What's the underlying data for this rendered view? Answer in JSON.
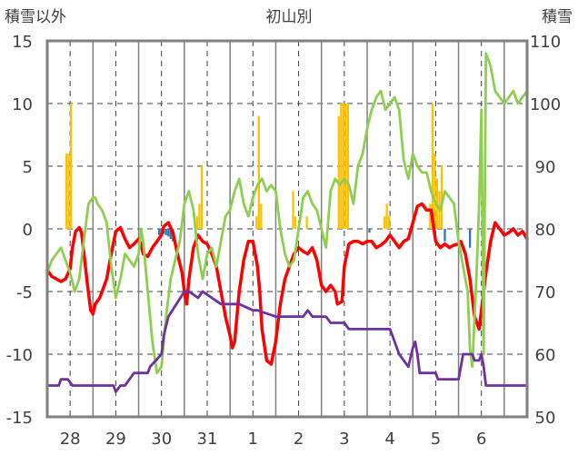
{
  "chart_data": {
    "type": "combo-line-bar",
    "title": "初山別",
    "left_axis_label": "積雪以外",
    "right_axis_label": "積雪",
    "left_ylim": [
      -15,
      15
    ],
    "left_ticks": [
      15,
      10,
      5,
      0,
      -5,
      -10,
      -15
    ],
    "right_ylim": [
      50,
      110
    ],
    "right_ticks": [
      110,
      100,
      90,
      80,
      70,
      60,
      50
    ],
    "x_range": [
      0,
      10.5
    ],
    "x_ticks": [
      {
        "x": 0.5,
        "label": "28"
      },
      {
        "x": 1.5,
        "label": "29"
      },
      {
        "x": 2.5,
        "label": "30"
      },
      {
        "x": 3.5,
        "label": "31"
      },
      {
        "x": 4.5,
        "label": "1"
      },
      {
        "x": 5.5,
        "label": "2"
      },
      {
        "x": 6.5,
        "label": "3"
      },
      {
        "x": 7.5,
        "label": "4"
      },
      {
        "x": 8.5,
        "label": "5"
      },
      {
        "x": 9.5,
        "label": "6"
      }
    ],
    "grid": "vertical dashed at day midpoints, vertical solid at day boundaries, horizontal dashed at each tick",
    "colors": {
      "red": "#ff0000",
      "green": "#8fcf50",
      "purple": "#7030a0",
      "orange_bar": "#ffc000",
      "blue_bar": "#2e75b6",
      "axis": "#808080"
    },
    "series": [
      {
        "color": "red",
        "axis": "left",
        "x": [
          0,
          0.1,
          0.2,
          0.3,
          0.4,
          0.5,
          0.55,
          0.62,
          0.7,
          0.75,
          0.82,
          0.88,
          0.95,
          1.0,
          1.05,
          1.15,
          1.3,
          1.4,
          1.5,
          1.6,
          1.7,
          1.8,
          1.9,
          2.0,
          2.05,
          2.1,
          2.2,
          2.3,
          2.4,
          2.5,
          2.55,
          2.65,
          2.75,
          2.85,
          2.95,
          3.0,
          3.05,
          3.1,
          3.2,
          3.3,
          3.4,
          3.5,
          3.6,
          3.7,
          3.8,
          3.9,
          4.0,
          4.05,
          4.1,
          4.2,
          4.3,
          4.4,
          4.5,
          4.55,
          4.6,
          4.65,
          4.7,
          4.8,
          4.9,
          5.0,
          5.05,
          5.1,
          5.2,
          5.3,
          5.4,
          5.5,
          5.6,
          5.7,
          5.8,
          5.9,
          6.0,
          6.1,
          6.2,
          6.3,
          6.35,
          6.45,
          6.5,
          6.6,
          6.7,
          6.8,
          6.9,
          7.0,
          7.1,
          7.2,
          7.3,
          7.4,
          7.5,
          7.6,
          7.7,
          7.8,
          7.9,
          8.0,
          8.1,
          8.2,
          8.3,
          8.4,
          8.5,
          8.6,
          8.7,
          8.8,
          8.9,
          9.0,
          9.05,
          9.1,
          9.15,
          9.25,
          9.35,
          9.45,
          9.55,
          9.6,
          9.7,
          9.8,
          9.9,
          10.0,
          10.1,
          10.2,
          10.3,
          10.4,
          10.5
        ],
        "y": [
          -3.3,
          -3.8,
          -4.0,
          -4.2,
          -4.0,
          -3.2,
          -1.5,
          -0.2,
          0.1,
          -0.3,
          -2.5,
          -4.5,
          -6.5,
          -6.8,
          -6.0,
          -5.5,
          -4.0,
          -2.0,
          -0.2,
          0.1,
          -0.8,
          -1.5,
          -1.2,
          -0.8,
          -1.2,
          -2.0,
          -2.2,
          -1.5,
          -1.0,
          -0.5,
          0.2,
          0.5,
          -0.3,
          -2.0,
          -3.5,
          -5.0,
          -6.0,
          -4.0,
          -1.5,
          -0.5,
          -1.0,
          -1.2,
          -2.0,
          -3.0,
          -5.0,
          -7.0,
          -8.5,
          -9.5,
          -9.0,
          -5.0,
          -2.5,
          -1.0,
          -1.0,
          -2.0,
          -3.0,
          -5.0,
          -8.0,
          -10.5,
          -10.8,
          -9.0,
          -7.5,
          -6.0,
          -4.0,
          -3.0,
          -2.0,
          -1.5,
          -1.8,
          -2.0,
          -1.5,
          -2.5,
          -4.5,
          -5.0,
          -4.5,
          -5.0,
          -6.0,
          -5.8,
          -3.0,
          -1.2,
          -1.0,
          -1.0,
          -1.2,
          -1.0,
          -1.0,
          -1.5,
          -1.3,
          -1.0,
          -0.5,
          -1.0,
          -1.5,
          -1.0,
          -0.8,
          0.5,
          1.8,
          2.0,
          1.5,
          1.5,
          -1.0,
          -1.5,
          -1.2,
          -1.5,
          -1.3,
          -1.2,
          -1.0,
          -1.5,
          -2.0,
          -4.0,
          -7.0,
          -8.0,
          -5.0,
          -3.5,
          -1.0,
          0.5,
          0.0,
          -0.5,
          -0.3,
          0.0,
          -0.5,
          -0.2,
          -0.8
        ]
      },
      {
        "color": "green",
        "axis": "left",
        "x": [
          0,
          0.1,
          0.2,
          0.3,
          0.4,
          0.5,
          0.6,
          0.7,
          0.8,
          0.9,
          1.0,
          1.05,
          1.1,
          1.2,
          1.3,
          1.4,
          1.5,
          1.6,
          1.7,
          1.8,
          1.9,
          2.0,
          2.05,
          2.1,
          2.2,
          2.3,
          2.4,
          2.5,
          2.6,
          2.7,
          2.8,
          2.9,
          3.0,
          3.1,
          3.2,
          3.3,
          3.4,
          3.5,
          3.6,
          3.7,
          3.8,
          3.9,
          4.0,
          4.1,
          4.2,
          4.3,
          4.4,
          4.5,
          4.6,
          4.7,
          4.8,
          4.9,
          5.0,
          5.1,
          5.2,
          5.3,
          5.4,
          5.5,
          5.6,
          5.7,
          5.8,
          5.9,
          6.0,
          6.1,
          6.2,
          6.3,
          6.4,
          6.5,
          6.6,
          6.7,
          6.8,
          6.9,
          7.0,
          7.1,
          7.2,
          7.3,
          7.4,
          7.5,
          7.6,
          7.7,
          7.8,
          7.9,
          8.0,
          8.1,
          8.2,
          8.3,
          8.4,
          8.5,
          8.6,
          8.7,
          8.8,
          8.9,
          9.0,
          9.1,
          9.2,
          9.25,
          9.3,
          9.35,
          9.4,
          9.45,
          9.5,
          9.55,
          9.6,
          9.7,
          9.8,
          9.9,
          10.0,
          10.1,
          10.2,
          10.3,
          10.4,
          10.5
        ],
        "y": [
          -3.5,
          -2.5,
          -2.0,
          -1.5,
          -2.5,
          -3.5,
          -5.0,
          -4.0,
          -1.0,
          2.0,
          2.5,
          2.5,
          2.0,
          1.5,
          0.5,
          -3.0,
          -5.5,
          -4.0,
          -2.0,
          -2.5,
          -3.0,
          -2.0,
          0.0,
          -1.0,
          -5.0,
          -9.0,
          -11.5,
          -11.0,
          -7.0,
          -4.0,
          -2.5,
          -1.0,
          2.0,
          3.0,
          1.5,
          -2.0,
          -4.0,
          -2.0,
          -1.5,
          -3.0,
          -1.0,
          1.0,
          1.5,
          3.0,
          4.0,
          2.0,
          1.0,
          2.5,
          3.5,
          4.0,
          3.0,
          3.5,
          3.0,
          0.0,
          -2.0,
          -3.0,
          -2.5,
          0.0,
          2.5,
          3.0,
          2.0,
          1.5,
          0.0,
          -1.5,
          3.0,
          4.0,
          3.5,
          4.0,
          3.5,
          2.0,
          5.0,
          6.0,
          8.0,
          9.5,
          10.5,
          11.0,
          9.5,
          10.0,
          10.5,
          9.5,
          5.5,
          4.0,
          6.0,
          5.0,
          4.5,
          4.5,
          3.0,
          2.0,
          1.5,
          3.0,
          2.5,
          2.0,
          -1.0,
          -3.0,
          -5.0,
          -9.5,
          -11.0,
          -7.0,
          -3.0,
          2.0,
          9.5,
          -10.0,
          14.0,
          13.0,
          11.0,
          10.5,
          10.0,
          10.5,
          11.0,
          10.0,
          10.5,
          11.0
        ]
      },
      {
        "color": "purple",
        "axis": "right",
        "x": [
          0,
          0.25,
          0.3,
          0.45,
          0.55,
          0.6,
          1.45,
          1.5,
          1.6,
          1.7,
          1.8,
          1.9,
          2.2,
          2.25,
          2.5,
          2.55,
          2.65,
          3.0,
          3.1,
          3.3,
          3.4,
          3.6,
          3.8,
          4.2,
          4.5,
          4.6,
          5.0,
          5.6,
          5.7,
          5.8,
          6.1,
          6.2,
          6.5,
          6.6,
          7.0,
          7.1,
          7.5,
          7.55,
          7.6,
          7.7,
          7.9,
          8.0,
          8.05,
          8.1,
          8.15,
          8.2,
          8.5,
          8.55,
          8.65,
          9.0,
          9.1,
          9.3,
          9.35,
          9.4,
          9.45,
          9.5,
          9.55,
          9.6,
          10.0,
          10.5
        ],
        "y": [
          55,
          55,
          56,
          56,
          55,
          55,
          55,
          54,
          55,
          55,
          56,
          57,
          57,
          58,
          60,
          63,
          66,
          70,
          70,
          69,
          70,
          69,
          68,
          68,
          67,
          67,
          66,
          66,
          67,
          66,
          66,
          65,
          65,
          64,
          64,
          64,
          64,
          63,
          62,
          60,
          58,
          61,
          62,
          60,
          57,
          57,
          57,
          56,
          56,
          56,
          60,
          60,
          59,
          59,
          59,
          60,
          58,
          55,
          55,
          55
        ]
      }
    ],
    "bars": [
      {
        "color": "orange",
        "axis": "left",
        "x": [
          0.42,
          0.47,
          0.52,
          3.28,
          3.33,
          3.38,
          4.58,
          4.63,
          4.68,
          5.38,
          5.43,
          5.68,
          6.38,
          6.43,
          6.48,
          6.53,
          6.58,
          7.38,
          7.43,
          7.48,
          8.38,
          8.43,
          8.48,
          8.53,
          8.58,
          8.63
        ],
        "y": [
          6,
          6,
          10,
          1,
          2,
          5,
          1,
          9,
          2,
          3,
          1,
          1,
          9,
          10,
          10,
          10,
          10,
          1,
          2,
          1,
          2,
          10,
          6,
          4,
          3,
          5
        ]
      },
      {
        "color": "blue",
        "axis": "left",
        "x": [
          2.45,
          2.5,
          2.55,
          2.6,
          2.65,
          2.7,
          2.75,
          7.05,
          8.7,
          9.25
        ],
        "y": [
          -0.5,
          -0.3,
          -0.4,
          -0.5,
          -0.6,
          -0.8,
          -1.0,
          -0.3,
          -1.0,
          -1.5
        ]
      }
    ]
  }
}
